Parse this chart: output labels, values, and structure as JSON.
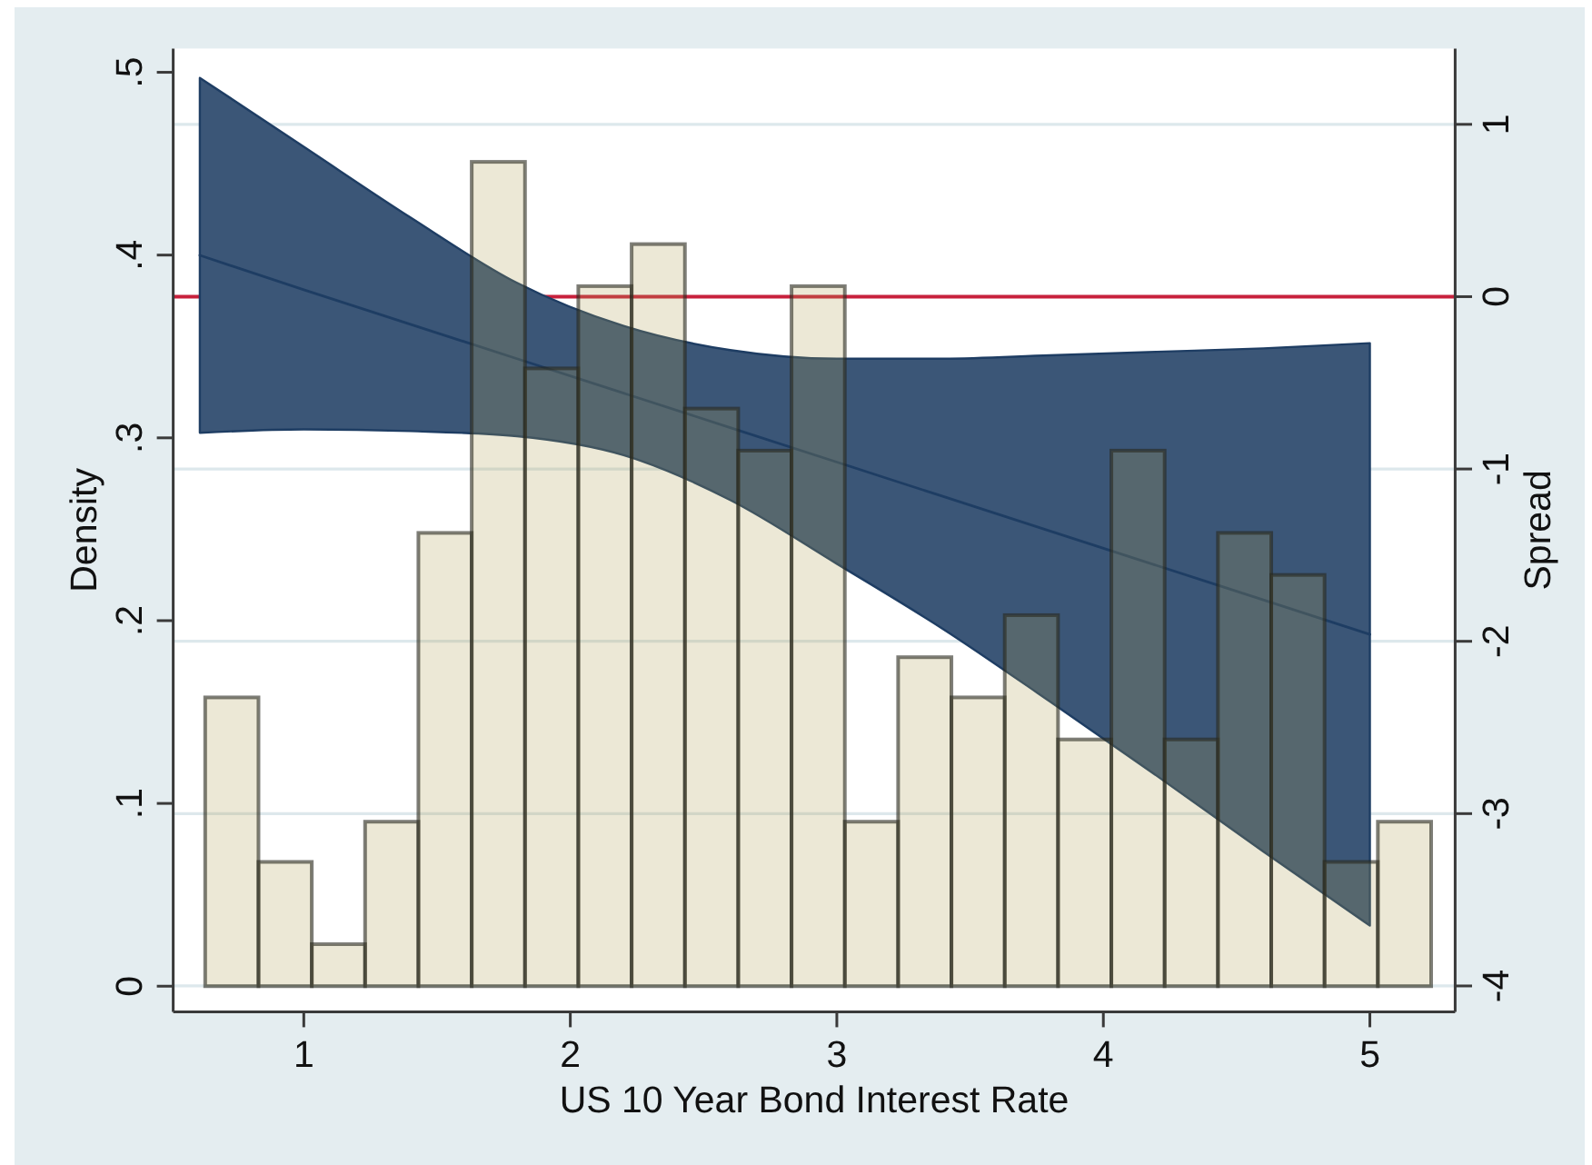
{
  "chart_data": {
    "type": "histogram",
    "xlabel": "US 10 Year Bond Interest Rate",
    "ylabel": "Density",
    "y2label": "Spread",
    "bins": [
      0.63,
      0.83,
      1.03,
      1.23,
      1.43,
      1.63,
      1.83,
      2.03,
      2.23,
      2.43,
      2.63,
      2.83,
      3.03,
      3.23,
      3.43,
      3.63,
      3.83,
      4.03,
      4.23,
      4.43,
      4.63,
      4.83,
      5.03,
      5.23
    ],
    "series": [
      {
        "color": "#ece8d6",
        "values": [
          0.158,
          0.068,
          0.023,
          0.09,
          0.248,
          0.451,
          0.338,
          0.383,
          0.406,
          0.316,
          0.293,
          0.383,
          0.09,
          0.18,
          0.158,
          0.203,
          0.135,
          0.293,
          0.135,
          0.248,
          0.225,
          0.068,
          0.09
        ]
      },
      {
        "type": "line",
        "axis": "y2",
        "color": "#1e3d63",
        "x": [
          0.61,
          1.0,
          1.4,
          1.8,
          2.2,
          2.6,
          3.0,
          3.4,
          3.8,
          4.2,
          4.6,
          5.0
        ],
        "values": [
          0.24,
          0.04,
          -0.16,
          -0.36,
          -0.56,
          -0.76,
          -0.96,
          -1.16,
          -1.36,
          -1.56,
          -1.76,
          -1.96
        ],
        "upper": [
          1.27,
          0.87,
          0.46,
          0.08,
          -0.17,
          -0.31,
          -0.36,
          -0.36,
          -0.34,
          -0.32,
          -0.3,
          -0.27
        ],
        "lower": [
          -0.79,
          -0.77,
          -0.78,
          -0.81,
          -0.92,
          -1.18,
          -1.55,
          -1.93,
          -2.35,
          -2.78,
          -3.22,
          -3.65
        ]
      }
    ],
    "xlim": [
      0.51,
      5.32
    ],
    "xticks": [
      1,
      2,
      3,
      4,
      5
    ],
    "ylim": [
      -0.014,
      0.513
    ],
    "yticks": [
      0,
      {
        "value": 0.1,
        "label": ".1"
      },
      {
        "value": 0.2,
        "label": ".2"
      },
      {
        "value": 0.3,
        "label": ".3"
      },
      {
        "value": 0.4,
        "label": ".4"
      },
      {
        "value": 0.5,
        "label": ".5"
      }
    ],
    "y2lim": [
      -4.15,
      1.44
    ],
    "y2ticks": [
      -4,
      -3,
      -2,
      -1,
      0,
      1
    ],
    "ref_lines": [
      {
        "axis": "y2",
        "value": 0,
        "color": "#c8203c"
      }
    ],
    "grid": "y"
  }
}
